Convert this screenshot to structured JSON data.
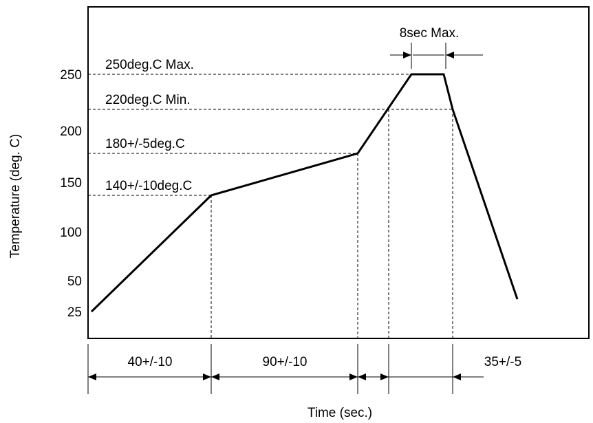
{
  "chart_data": {
    "type": "line",
    "title": "",
    "xlabel": "Time (sec.)",
    "ylabel": "Temperature (deg. C)",
    "y_ticks": [
      25,
      50,
      100,
      150,
      200,
      250
    ],
    "ylim": [
      0,
      290
    ],
    "grid": false,
    "series": [
      {
        "x": [
          0,
          85,
          194,
          214,
          220,
          241,
          266
        ],
        "y": [
          25,
          140,
          180,
          250,
          250,
          220,
          35
        ]
      }
    ],
    "reference_levels": [
      {
        "y": 250,
        "label": "250deg.C Max."
      },
      {
        "y": 220,
        "label": "220deg.C Min."
      },
      {
        "y": 180,
        "label": "180+/-5deg.C"
      },
      {
        "y": 140,
        "label": "140+/-10deg.C"
      }
    ],
    "intervals": [
      {
        "label": "40+/-10"
      },
      {
        "label": "90+/-10"
      },
      {
        "label": ""
      },
      {
        "label": "35+/-5"
      }
    ],
    "peak_interval": {
      "label": "8sec Max."
    }
  }
}
